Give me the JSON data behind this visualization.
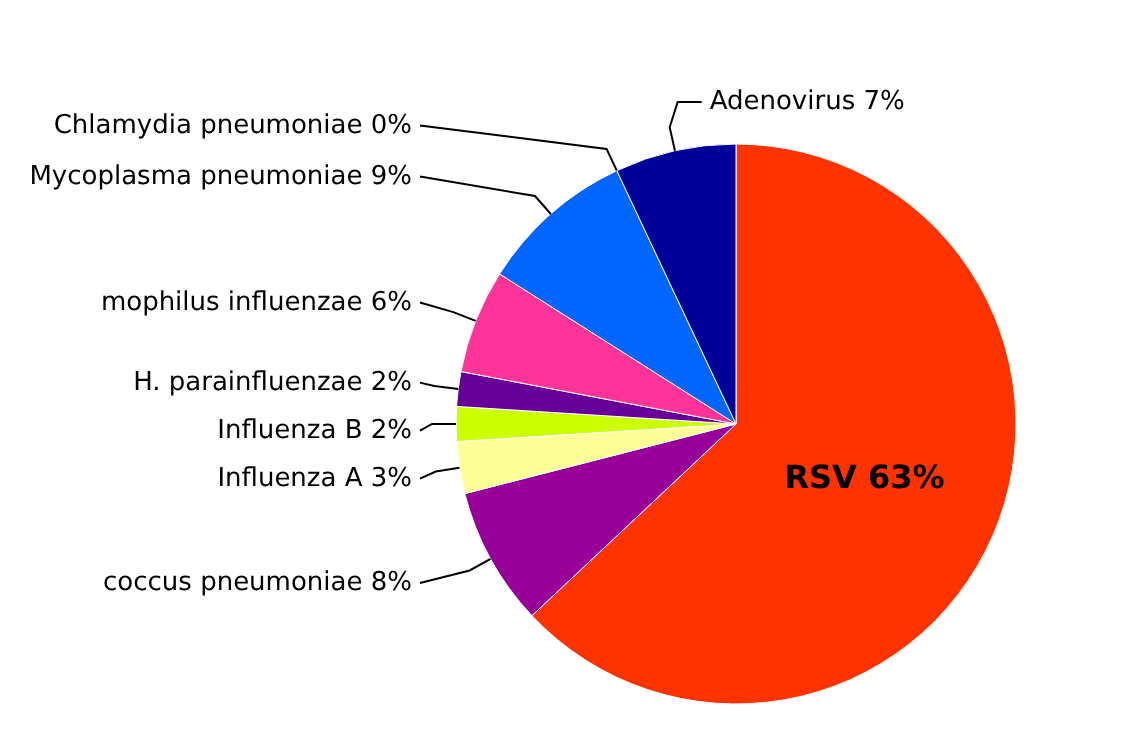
{
  "chart_data": {
    "type": "pie",
    "categories": [
      "RSV",
      "coccus pneumoniae",
      "Influenza A",
      "Influenza B",
      "H. parainfluenzae",
      "mophilus influenzae",
      "Mycoplasma pneumoniae",
      "Chlamydia pneumoniae",
      "Adenovirus"
    ],
    "values": [
      63,
      8,
      3,
      2,
      2,
      6,
      9,
      0,
      7
    ],
    "value_labels": [
      "63%",
      "8%",
      "3%",
      "2%",
      "2%",
      "6%",
      "9%",
      "0%",
      "7%"
    ],
    "colors": [
      "#ff3300",
      "#990099",
      "#ffff99",
      "#ccff00",
      "#660099",
      "#ff3399",
      "#0066ff",
      null,
      "#000099"
    ]
  }
}
